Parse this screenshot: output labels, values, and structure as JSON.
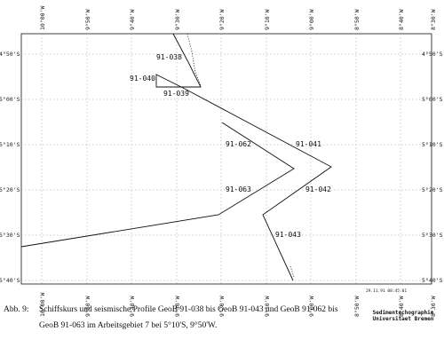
{
  "map": {
    "top_tick_labels": [
      "10°00'W",
      "9°50'W",
      "9°40'W",
      "9°30'W",
      "9°20'W",
      "9°10'W",
      "9°00'W",
      "8°50'W",
      "8°40'W",
      "8°30'W"
    ],
    "bottom_tick_labels": [
      "10°00'W",
      "9°50'W",
      "9°40'W",
      "9°30'W",
      "9°20'W",
      "9°10'W",
      "9°00'W",
      "8°50'W",
      "8°40'W",
      "8°30'W"
    ],
    "left_tick_labels": [
      "4°50'S",
      "5°00'S",
      "5°10'S",
      "5°20'S",
      "5°30'S",
      "5°40'S"
    ],
    "right_tick_labels": [
      "4°50'S",
      "5°00'S",
      "5°10'S",
      "5°20'S",
      "5°30'S",
      "5°40'S"
    ],
    "profile_labels": {
      "p038": "91-038",
      "p039": "91-039",
      "p040": "91-040",
      "p041": "91-041",
      "p042": "91-042",
      "p043": "91-043",
      "p062": "91-062",
      "p063": "91-063"
    },
    "colors": {
      "track": "#111111",
      "grid": "#9a9a9a",
      "frame": "#111111"
    }
  },
  "caption": {
    "figure_number": "Abb. 9:",
    "text": "Schiffskurs und seismische Profile GeoB 91-038 bis GeoB 91-043 und GeoB 91-062 bis GeoB 91-063 im Arbeitsgebiet 7 bei 5°10'S, 9°50'W."
  },
  "stamp": "29.11.91 08:45:01",
  "credit": {
    "line1": "Sedimentechographie",
    "line2": "Universitaet Bremen"
  }
}
